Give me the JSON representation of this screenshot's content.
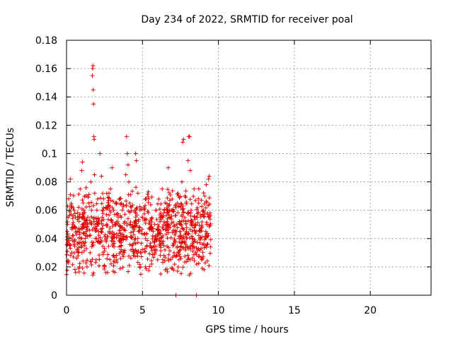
{
  "chart_data": {
    "type": "scatter",
    "title": "Day 234 of 2022, SRMTID for receiver poal",
    "xlabel": "GPS time / hours",
    "ylabel": "SRMTID / TECUs",
    "xlim": [
      0,
      24
    ],
    "ylim": [
      0,
      0.18
    ],
    "x_ticks": [
      0,
      5,
      10,
      15,
      20
    ],
    "y_ticks": [
      0,
      0.02,
      0.04,
      0.06,
      0.08,
      0.1,
      0.12,
      0.14,
      0.16,
      0.18
    ],
    "x_tick_labels": [
      "0",
      "5",
      "10",
      "15",
      "20"
    ],
    "y_tick_labels": [
      "0",
      "0.02",
      "0.04",
      "0.06",
      "0.08",
      "0.1",
      "0.12",
      "0.14",
      "0.16",
      "0.18"
    ],
    "grid": true,
    "marker": "+",
    "marker_color": "#e00000",
    "data_span_hours": [
      0,
      9.5
    ],
    "series": [
      {
        "points": [
          [
            0.05,
            0.045
          ],
          [
            0.1,
            0.055
          ],
          [
            0.15,
            0.068
          ],
          [
            0.2,
            0.035
          ],
          [
            0.25,
            0.082
          ],
          [
            0.3,
            0.04
          ],
          [
            0.35,
            0.03
          ],
          [
            0.4,
            0.05
          ],
          [
            0.45,
            0.027
          ],
          [
            0.5,
            0.06
          ],
          [
            0.55,
            0.038
          ],
          [
            0.6,
            0.016
          ],
          [
            0.7,
            0.045
          ],
          [
            0.75,
            0.055
          ],
          [
            0.8,
            0.062
          ],
          [
            0.85,
            0.02
          ],
          [
            0.9,
            0.075
          ],
          [
            0.95,
            0.04
          ],
          [
            1.0,
            0.088
          ],
          [
            1.05,
            0.094
          ],
          [
            1.1,
            0.05
          ],
          [
            1.15,
            0.06
          ],
          [
            1.2,
            0.035
          ],
          [
            1.25,
            0.07
          ],
          [
            1.3,
            0.045
          ],
          [
            1.35,
            0.02
          ],
          [
            1.4,
            0.055
          ],
          [
            1.45,
            0.065
          ],
          [
            1.5,
            0.042
          ],
          [
            1.55,
            0.03
          ],
          [
            1.6,
            0.08
          ],
          [
            1.65,
            0.06
          ],
          [
            1.7,
            0.155
          ],
          [
            1.72,
            0.16
          ],
          [
            1.74,
            0.162
          ],
          [
            1.76,
            0.145
          ],
          [
            1.78,
            0.135
          ],
          [
            1.8,
            0.112
          ],
          [
            1.82,
            0.11
          ],
          [
            1.84,
            0.085
          ],
          [
            1.86,
            0.072
          ],
          [
            1.88,
            0.05
          ],
          [
            1.9,
            0.04
          ],
          [
            1.95,
            0.025
          ],
          [
            2.0,
            0.06
          ],
          [
            2.05,
            0.038
          ],
          [
            2.1,
            0.045
          ],
          [
            2.2,
            0.1
          ],
          [
            2.3,
            0.084
          ],
          [
            2.35,
            0.055
          ],
          [
            2.4,
            0.03
          ],
          [
            2.5,
            0.02
          ],
          [
            2.6,
            0.062
          ],
          [
            2.7,
            0.016
          ],
          [
            2.8,
            0.045
          ],
          [
            2.9,
            0.075
          ],
          [
            3.0,
            0.09
          ],
          [
            3.05,
            0.035
          ],
          [
            3.1,
            0.06
          ],
          [
            3.2,
            0.05
          ],
          [
            3.3,
            0.025
          ],
          [
            3.4,
            0.042
          ],
          [
            3.5,
            0.068
          ],
          [
            3.6,
            0.055
          ],
          [
            3.7,
            0.04
          ],
          [
            3.8,
            0.03
          ],
          [
            3.9,
            0.085
          ],
          [
            3.95,
            0.112
          ],
          [
            4.0,
            0.1
          ],
          [
            4.05,
            0.092
          ],
          [
            4.1,
            0.08
          ],
          [
            4.15,
            0.065
          ],
          [
            4.2,
            0.05
          ],
          [
            4.3,
            0.035
          ],
          [
            4.4,
            0.028
          ],
          [
            4.5,
            0.06
          ],
          [
            4.55,
            0.1
          ],
          [
            4.6,
            0.095
          ],
          [
            4.7,
            0.072
          ],
          [
            4.8,
            0.045
          ],
          [
            4.9,
            0.03
          ],
          [
            5.0,
            0.055
          ],
          [
            5.1,
            0.062
          ],
          [
            5.2,
            0.04
          ],
          [
            5.3,
            0.035
          ],
          [
            5.4,
            0.068
          ],
          [
            5.5,
            0.05
          ],
          [
            5.6,
            0.022
          ],
          [
            5.7,
            0.045
          ],
          [
            5.8,
            0.03
          ],
          [
            5.9,
            0.06
          ],
          [
            6.0,
            0.025
          ],
          [
            6.1,
            0.04
          ],
          [
            6.15,
            0.052
          ],
          [
            6.2,
            0.015
          ],
          [
            6.3,
            0.075
          ],
          [
            6.4,
            0.035
          ],
          [
            6.5,
            0.018
          ],
          [
            6.6,
            0.048
          ],
          [
            6.7,
            0.09
          ],
          [
            6.8,
            0.055
          ],
          [
            6.9,
            0.06
          ],
          [
            7.0,
            0.035
          ],
          [
            7.1,
            0.028
          ],
          [
            7.2,
            0.0
          ],
          [
            7.3,
            0.065
          ],
          [
            7.4,
            0.025
          ],
          [
            7.5,
            0.05
          ],
          [
            7.6,
            0.08
          ],
          [
            7.65,
            0.108
          ],
          [
            7.7,
            0.11
          ],
          [
            7.8,
            0.07
          ],
          [
            7.9,
            0.045
          ],
          [
            8.0,
            0.095
          ],
          [
            8.05,
            0.112
          ],
          [
            8.1,
            0.112
          ],
          [
            8.15,
            0.088
          ],
          [
            8.2,
            0.06
          ],
          [
            8.3,
            0.04
          ],
          [
            8.4,
            0.075
          ],
          [
            8.5,
            0.03
          ],
          [
            8.55,
            0.0
          ],
          [
            8.6,
            0.055
          ],
          [
            8.7,
            0.065
          ],
          [
            8.8,
            0.045
          ],
          [
            8.9,
            0.025
          ],
          [
            9.0,
            0.06
          ],
          [
            9.05,
            0.018
          ],
          [
            9.1,
            0.07
          ],
          [
            9.15,
            0.035
          ],
          [
            9.2,
            0.078
          ],
          [
            9.25,
            0.05
          ],
          [
            9.3,
            0.042
          ],
          [
            9.35,
            0.082
          ],
          [
            9.4,
            0.084
          ],
          [
            9.45,
            0.058
          ]
        ]
      }
    ]
  }
}
